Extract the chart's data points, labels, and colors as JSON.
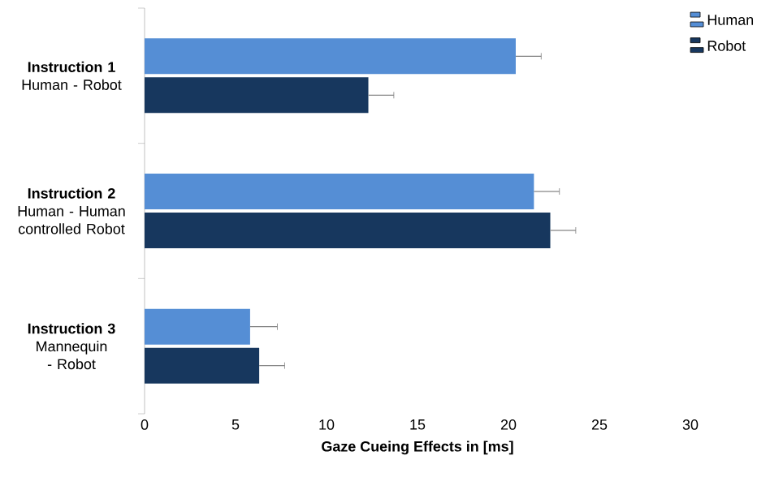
{
  "chart_data": {
    "type": "bar",
    "orientation": "horizontal",
    "xlabel": "Gaze Cueing Effects in [ms]",
    "categories": [
      "**Instruction 1** Human - Robot",
      "**Instruction 2** Human - Human controlled Robot",
      "**Instruction 3** Mannequin - Robot"
    ],
    "series": [
      {
        "name": "Human",
        "color": "#558ed5",
        "values": [
          20.4,
          21.4,
          5.8
        ],
        "errors": [
          1.4,
          1.4,
          1.5
        ]
      },
      {
        "name": "Robot",
        "color": "#17375e",
        "values": [
          12.3,
          22.3,
          6.3
        ],
        "errors": [
          1.4,
          1.4,
          1.4
        ]
      }
    ],
    "xlim": [
      0,
      30
    ],
    "xticks": [
      0,
      5,
      10,
      15,
      20,
      25,
      30
    ],
    "grid": false,
    "legend": "top right"
  }
}
